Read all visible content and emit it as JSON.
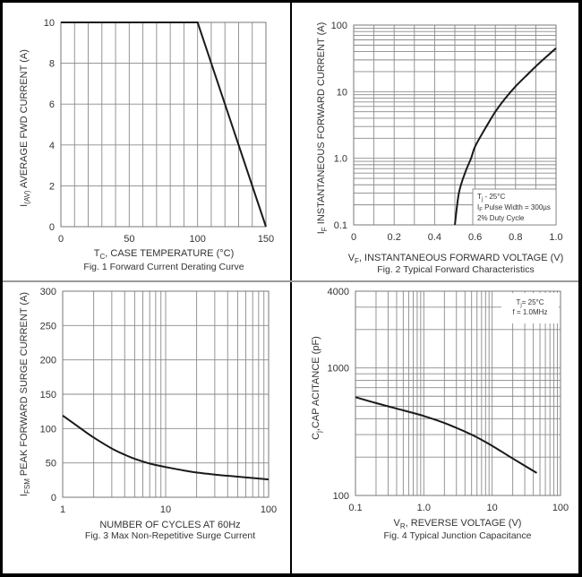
{
  "chart_data": [
    {
      "id": "fig1",
      "type": "line",
      "title": "Fig. 1  Forward Current Derating Curve",
      "xlabel": "T",
      "xlabel_sub": "C",
      "xlabel_rest": ", CASE TEMPERATURE (°C)",
      "ylabel": "I",
      "ylabel_sub": "(AV)",
      "ylabel_rest": "  AVERAGE FWD CURRENT (A)",
      "xscale": "linear",
      "yscale": "linear",
      "xlim": [
        0,
        150
      ],
      "ylim": [
        0,
        10
      ],
      "xticks": [
        0,
        50,
        100,
        150
      ],
      "xtick_labels": [
        "0",
        "50",
        "100",
        "150"
      ],
      "yticks": [
        0,
        2,
        4,
        6,
        8,
        10
      ],
      "ytick_labels": [
        "0",
        "2",
        "4",
        "6",
        "8",
        "10"
      ],
      "xgrid": [
        0,
        10,
        20,
        30,
        40,
        50,
        60,
        70,
        80,
        90,
        100,
        110,
        120,
        130,
        140,
        150
      ],
      "ygrid": [
        0,
        2,
        4,
        6,
        8,
        10
      ],
      "grid": true,
      "series": [
        {
          "name": "derating",
          "x": [
            0,
            100,
            150
          ],
          "y": [
            10,
            10,
            0
          ]
        }
      ]
    },
    {
      "id": "fig2",
      "type": "line",
      "title": "Fig. 2  Typical Forward Characteristics",
      "xlabel": "V",
      "xlabel_sub": "F",
      "xlabel_rest": ", INSTANTANEOUS FORWARD VOLTAGE (V)",
      "ylabel": "I",
      "ylabel_sub": "F",
      "ylabel_rest": "  INSTANTANEOUS FORWARD CURRENT (A)",
      "xscale": "linear",
      "yscale": "log",
      "xlim": [
        0,
        1.0
      ],
      "ylim": [
        0.1,
        100
      ],
      "xticks": [
        0,
        0.2,
        0.4,
        0.6,
        0.8,
        1.0
      ],
      "xtick_labels": [
        "0",
        "0.2",
        "0.4",
        "0.6",
        "0.8",
        "1.0"
      ],
      "yticks": [
        0.1,
        1,
        10,
        100
      ],
      "ytick_labels": [
        "0.1",
        "1.0",
        "10",
        "100"
      ],
      "xgrid": [
        0,
        0.1,
        0.2,
        0.3,
        0.4,
        0.5,
        0.6,
        0.7,
        0.8,
        0.9,
        1.0
      ],
      "grid": true,
      "legend": [
        "T",
        "j",
        " - 25°C",
        "I",
        "F",
        " Pulse Width = 300µs",
        "2% Duty Cycle"
      ],
      "legend_lines": {
        "line1_main": "T",
        "line1_sub": "j",
        "line1_rest": " - 25°C",
        "line2_main": "I",
        "line2_sub": "F",
        "line2_rest": " Pulse Width = 300µs",
        "line3": "2% Duty Cycle"
      },
      "legend_position": "bottom-right",
      "series": [
        {
          "name": "forward",
          "x": [
            0.5,
            0.52,
            0.55,
            0.58,
            0.6,
            0.65,
            0.7,
            0.75,
            0.8,
            0.85,
            0.9,
            0.95,
            1.0
          ],
          "y": [
            0.1,
            0.3,
            0.6,
            1.0,
            1.5,
            2.8,
            5.0,
            8.0,
            12,
            17,
            24,
            33,
            45
          ]
        }
      ]
    },
    {
      "id": "fig3",
      "type": "line",
      "title": "Fig. 3  Max Non-Repetitive Surge Current",
      "xlabel": "NUMBER OF CYCLES AT 60Hz",
      "ylabel": "I",
      "ylabel_sub": "FSM",
      "ylabel_rest": "  PEAK FORWARD SURGE CURRENT (A)",
      "xscale": "log",
      "yscale": "linear",
      "xlim": [
        1,
        100
      ],
      "ylim": [
        0,
        300
      ],
      "xticks": [
        1,
        10,
        100
      ],
      "xtick_labels": [
        "1",
        "10",
        "100"
      ],
      "yticks": [
        0,
        50,
        100,
        150,
        200,
        250,
        300
      ],
      "ytick_labels": [
        "0",
        "50",
        "100",
        "150",
        "200",
        "250",
        "300"
      ],
      "grid": true,
      "series": [
        {
          "name": "surge",
          "x": [
            1,
            1.5,
            2,
            3,
            4,
            5,
            7,
            10,
            15,
            20,
            30,
            50,
            70,
            100
          ],
          "y": [
            119,
            100,
            87,
            71,
            62,
            56,
            49,
            44,
            39,
            36,
            33,
            30,
            28,
            26
          ]
        }
      ]
    },
    {
      "id": "fig4",
      "type": "line",
      "title": "Fig. 4  Typical Junction Capacitance",
      "xlabel": "V",
      "xlabel_sub": "R",
      "xlabel_rest": ", REVERSE VOLTAGE (V)",
      "ylabel": "C",
      "ylabel_sub": "j",
      "ylabel_rest": ",CAP ACITANCE (pF)",
      "xscale": "log",
      "yscale": "log",
      "xlim": [
        0.1,
        100
      ],
      "ylim": [
        100,
        4000
      ],
      "xticks": [
        0.1,
        1,
        10,
        100
      ],
      "xtick_labels": [
        "0.1",
        "1.0",
        "10",
        "100"
      ],
      "yticks": [
        100,
        1000,
        4000
      ],
      "ytick_labels": [
        "100",
        "1000",
        "4000"
      ],
      "grid": true,
      "legend_lines": {
        "line1_main": "T",
        "line1_sub": "j",
        "line1_rest": "= 25°C",
        "line2": "f = 1.0MHz"
      },
      "legend_position": "top-right",
      "series": [
        {
          "name": "capacitance",
          "x": [
            0.1,
            0.2,
            0.5,
            1,
            2,
            5,
            10,
            20,
            45
          ],
          "y": [
            590,
            530,
            465,
            420,
            370,
            300,
            245,
            195,
            150
          ]
        }
      ]
    }
  ],
  "colors": {
    "frame": "#000000",
    "grid": "#8a8a8a",
    "curve": "#1a1a1a",
    "text": "#333333"
  }
}
